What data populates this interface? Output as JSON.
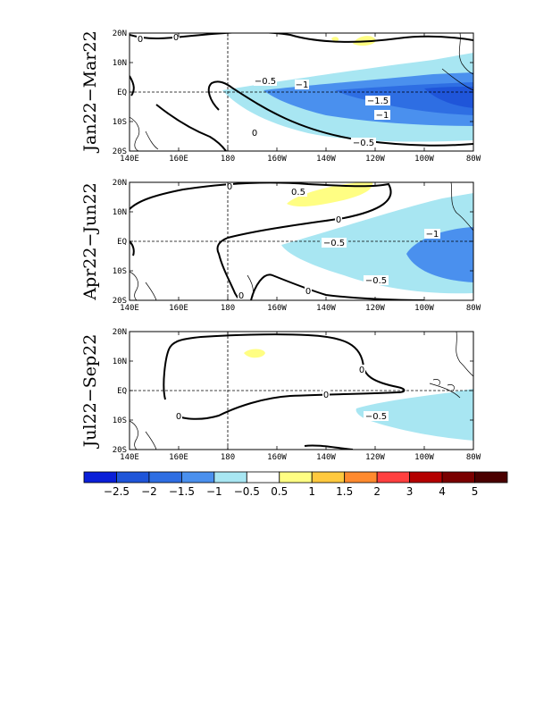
{
  "colors": {
    "-3": "#0a1fd8",
    "-2.5": "#1f55d9",
    "-2": "#2e6ee3",
    "-1.5": "#4a90ee",
    "-1": "#a8e6f2",
    "-0.5": "#ffffff",
    "0.5": "#fffe83",
    "1": "#ffc93e",
    "1.5": "#ff8a2e",
    "2": "#ff3f3f",
    "3": "#b40000",
    "4": "#7a0000",
    "5": "#4a0000"
  },
  "colorbar": {
    "tick_labels": [
      "−2.5",
      "−2",
      "−1.5",
      "−1",
      "−0.5",
      "0.5",
      "1",
      "1.5",
      "2",
      "3",
      "4",
      "5"
    ],
    "swatch_colors": [
      "#0a1fd8",
      "#1f55d9",
      "#2e6ee3",
      "#4a90ee",
      "#a8e6f2",
      "#ffffff",
      "#fffe83",
      "#ffc93e",
      "#ff8a2e",
      "#ff3f3f",
      "#b40000",
      "#7a0000",
      "#4a0000"
    ]
  },
  "axes": {
    "x_tick_labels": [
      "140E",
      "160E",
      "180",
      "160W",
      "140W",
      "120W",
      "100W",
      "80W"
    ],
    "y_tick_labels": [
      "20N",
      "10N",
      "EQ",
      "10S",
      "20S"
    ]
  },
  "panels": [
    {
      "label": "Jan22−Mar22",
      "contour_labels": [
        "0",
        "0",
        "0",
        "−0.5",
        "−1",
        "−1.5",
        "−1",
        "−0.5"
      ]
    },
    {
      "label": "Apr22−Jun22",
      "contour_labels": [
        "0.5",
        "0",
        "0",
        "0",
        "−0.5",
        "−1",
        "−0.5",
        "0"
      ]
    },
    {
      "label": "Jul22−Sep22",
      "contour_labels": [
        "0",
        "0",
        "0",
        "−0.5"
      ]
    }
  ]
}
